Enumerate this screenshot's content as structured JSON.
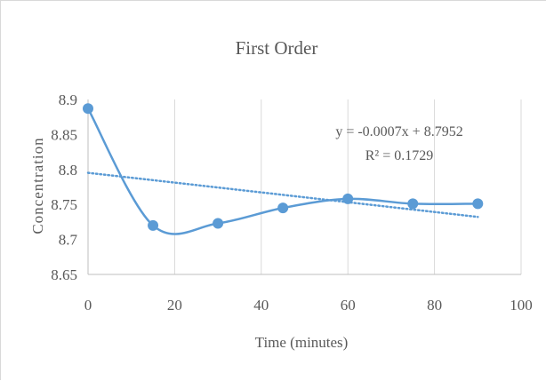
{
  "chart_data": {
    "type": "scatter",
    "title": "First Order",
    "xlabel": "Time (minutes)",
    "ylabel": "Concentration",
    "xlim": [
      0,
      100
    ],
    "ylim": [
      8.65,
      8.9
    ],
    "xticks": [
      "0",
      "20",
      "40",
      "60",
      "80",
      "100"
    ],
    "yticks": [
      "8.65",
      "8.7",
      "8.75",
      "8.8",
      "8.85",
      "8.9"
    ],
    "grid": "vertical",
    "legend": "none",
    "series": [
      {
        "x": [
          0,
          15,
          30,
          45,
          60,
          75,
          90
        ],
        "y": [
          8.887,
          8.72,
          8.723,
          8.745,
          8.758,
          8.751,
          8.751
        ],
        "color": "#5b9bd5",
        "line": "smoothed"
      }
    ],
    "trendline": {
      "type": "linear",
      "slope": -0.0007,
      "intercept": 8.7952,
      "x_range": [
        0,
        90
      ],
      "color": "#5b9bd5",
      "style": "dotted",
      "equation_text": "y = -0.0007x + 8.7952",
      "r2_text": "R² = 0.1729"
    }
  }
}
